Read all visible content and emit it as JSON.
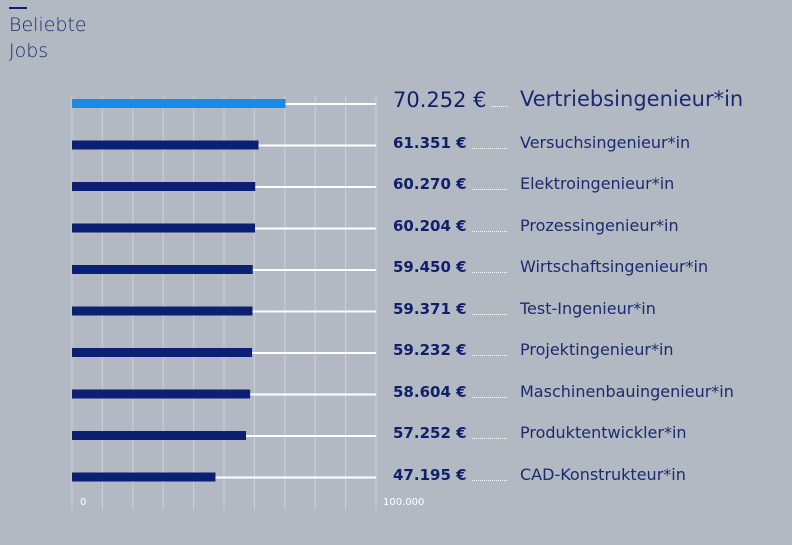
{
  "title": "Beliebte Jobs",
  "chart_data": {
    "type": "bar",
    "orientation": "horizontal",
    "title": "Beliebte Jobs",
    "categories": [
      "Vertriebsingenieur*in",
      "Versuchsingenieur*in",
      "Elektroingenieur*in",
      "Prozessingenieur*in",
      "Wirtschaftsingenieur*in",
      "Test-Ingenieur*in",
      "Projektingenieur*in",
      "Maschinenbauingenieur*in",
      "Produktentwickler*in",
      "CAD-Konstrukteur*in"
    ],
    "values": [
      70252,
      61351,
      60270,
      60204,
      59450,
      59371,
      59232,
      58604,
      57252,
      47195
    ],
    "value_labels": [
      "70.252 €",
      "61.351 €",
      "60.270 €",
      "60.204 €",
      "59.450 €",
      "59.371 €",
      "59.232 €",
      "58.604 €",
      "57.252 €",
      "47.195 €"
    ],
    "xlim": [
      0,
      100000
    ],
    "tick_labels": [
      "0",
      "100.000"
    ],
    "grid": true,
    "colors": {
      "highlight": "#1a8ae8",
      "bar": "#0b1f73",
      "track": "#ffffff",
      "background": "#b3b9c2"
    }
  }
}
